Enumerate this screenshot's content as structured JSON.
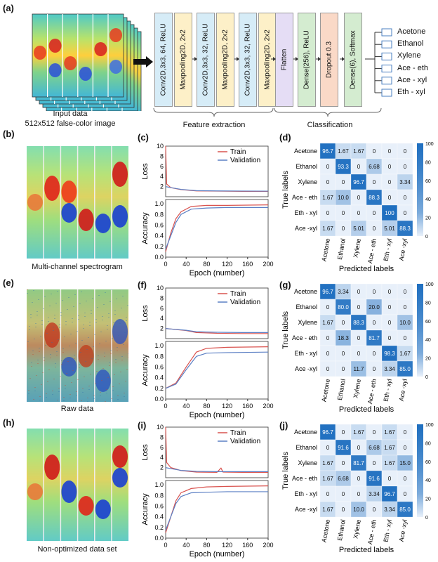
{
  "panel_labels": {
    "a": "(a)",
    "b": "(b)",
    "c": "(c)",
    "d": "(d)",
    "e": "(e)",
    "f": "(f)",
    "g": "(g)",
    "h": "(h)",
    "i": "(i)",
    "j": "(j)"
  },
  "panel_a": {
    "input_caption_1": "Input data",
    "input_caption_2": "512x512 false-color image",
    "layers": [
      {
        "label": "Conv2D,3x3, 64, ReLU",
        "color": "#d6ecf7"
      },
      {
        "label": "Maxpooling2D, 2x2",
        "color": "#fdf0c8"
      },
      {
        "label": "Conv2D,3x3, 32, ReLU",
        "color": "#d6ecf7"
      },
      {
        "label": "Maxpooling2D, 2x2",
        "color": "#fdf0c8"
      },
      {
        "label": "Conv2D,3x3, 32, ReLU",
        "color": "#d6ecf7"
      },
      {
        "label": "Maxpooling2D, 2x2",
        "color": "#fdf0c8"
      },
      {
        "label": "Flatten",
        "color": "#e5ddf5"
      },
      {
        "label": "Dense(256), ReLU",
        "color": "#d4ecd0"
      },
      {
        "label": "Dropout 0.3",
        "color": "#fad9c7"
      },
      {
        "label": "Dense(6), Softmax",
        "color": "#d4ecd0"
      }
    ],
    "feature_extraction_label": "Feature extraction",
    "classification_label": "Classification",
    "outputs": [
      "Acetone",
      "Ethanol",
      "Xylene",
      "Ace - eth",
      "Ace - xyl",
      "Eth - xyl"
    ]
  },
  "captions": {
    "b": "Multi-channel  spectrogram",
    "e": "Raw data",
    "h": "Non-optimized data set"
  },
  "chart_data": [
    {
      "type": "line",
      "panel": "c",
      "ylabel_top": "Loss",
      "ylabel_bottom": "Accuracy",
      "xlabel": "Epoch (number)",
      "x_ticks": [
        0,
        40,
        80,
        120,
        160,
        200
      ],
      "loss_ticks": [
        2,
        4,
        6,
        8,
        10
      ],
      "acc_ticks": [
        0.0,
        0.2,
        0.4,
        0.6,
        0.8,
        1.0
      ],
      "series": [
        {
          "name": "Train",
          "color": "#d9534f",
          "loss": [
            [
              0,
              10
            ],
            [
              2,
              2.5
            ],
            [
              10,
              1.8
            ],
            [
              30,
              1.4
            ],
            [
              60,
              1.15
            ],
            [
              100,
              1.1
            ],
            [
              150,
              1.05
            ],
            [
              200,
              1.05
            ]
          ],
          "acc": [
            [
              0,
              0.1
            ],
            [
              10,
              0.45
            ],
            [
              20,
              0.72
            ],
            [
              30,
              0.85
            ],
            [
              50,
              0.95
            ],
            [
              80,
              0.97
            ],
            [
              120,
              0.97
            ],
            [
              200,
              0.98
            ]
          ]
        },
        {
          "name": "Validation",
          "color": "#5b7fc4",
          "loss": [
            [
              0,
              2.0
            ],
            [
              10,
              1.8
            ],
            [
              30,
              1.45
            ],
            [
              60,
              1.2
            ],
            [
              100,
              1.15
            ],
            [
              150,
              1.12
            ],
            [
              200,
              1.1
            ]
          ],
          "acc": [
            [
              0,
              0.15
            ],
            [
              10,
              0.4
            ],
            [
              20,
              0.65
            ],
            [
              30,
              0.8
            ],
            [
              50,
              0.9
            ],
            [
              80,
              0.92
            ],
            [
              120,
              0.93
            ],
            [
              200,
              0.93
            ]
          ]
        }
      ]
    },
    {
      "type": "line",
      "panel": "f",
      "ylabel_top": "Loss",
      "ylabel_bottom": "Accuracy",
      "xlabel": "Epoch (number)",
      "x_ticks": [
        0,
        40,
        80,
        120,
        160,
        200
      ],
      "loss_ticks": [
        2,
        4,
        6,
        8,
        10
      ],
      "acc_ticks": [
        0.0,
        0.2,
        0.4,
        0.6,
        0.8,
        1.0
      ],
      "series": [
        {
          "name": "Train",
          "color": "#d9534f",
          "loss": [
            [
              0,
              2.0
            ],
            [
              10,
              1.9
            ],
            [
              40,
              1.6
            ],
            [
              60,
              1.2
            ],
            [
              100,
              1.05
            ],
            [
              150,
              1.0
            ],
            [
              200,
              1.0
            ]
          ],
          "acc": [
            [
              0,
              0.2
            ],
            [
              20,
              0.3
            ],
            [
              40,
              0.6
            ],
            [
              60,
              0.88
            ],
            [
              80,
              0.95
            ],
            [
              120,
              0.97
            ],
            [
              200,
              0.98
            ]
          ]
        },
        {
          "name": "Validation",
          "color": "#5b7fc4",
          "loss": [
            [
              0,
              2.0
            ],
            [
              10,
              1.9
            ],
            [
              40,
              1.65
            ],
            [
              60,
              1.35
            ],
            [
              100,
              1.25
            ],
            [
              150,
              1.2
            ],
            [
              200,
              1.2
            ]
          ],
          "acc": [
            [
              0,
              0.2
            ],
            [
              20,
              0.28
            ],
            [
              40,
              0.55
            ],
            [
              60,
              0.8
            ],
            [
              80,
              0.86
            ],
            [
              120,
              0.87
            ],
            [
              200,
              0.88
            ]
          ]
        }
      ]
    },
    {
      "type": "line",
      "panel": "i",
      "ylabel_top": "Loss",
      "ylabel_bottom": "Accuracy",
      "xlabel": "Epoch (number)",
      "x_ticks": [
        0,
        40,
        80,
        120,
        160,
        200
      ],
      "loss_ticks": [
        2,
        4,
        6,
        8,
        10
      ],
      "acc_ticks": [
        0.0,
        0.2,
        0.4,
        0.6,
        0.8,
        1.0
      ],
      "series": [
        {
          "name": "Train",
          "color": "#d9534f",
          "loss": [
            [
              0,
              10
            ],
            [
              2,
              3
            ],
            [
              10,
              2.0
            ],
            [
              30,
              1.4
            ],
            [
              60,
              1.1
            ],
            [
              100,
              1.05
            ],
            [
              108,
              1.9
            ],
            [
              112,
              1.1
            ],
            [
              150,
              1.05
            ],
            [
              200,
              1.05
            ]
          ],
          "acc": [
            [
              0,
              0.1
            ],
            [
              10,
              0.4
            ],
            [
              20,
              0.7
            ],
            [
              30,
              0.85
            ],
            [
              50,
              0.93
            ],
            [
              80,
              0.96
            ],
            [
              120,
              0.97
            ],
            [
              200,
              0.98
            ]
          ]
        },
        {
          "name": "Validation",
          "color": "#5b7fc4",
          "loss": [
            [
              0,
              2.0
            ],
            [
              10,
              1.8
            ],
            [
              30,
              1.45
            ],
            [
              60,
              1.25
            ],
            [
              100,
              1.2
            ],
            [
              150,
              1.2
            ],
            [
              200,
              1.2
            ]
          ],
          "acc": [
            [
              0,
              0.15
            ],
            [
              10,
              0.4
            ],
            [
              20,
              0.65
            ],
            [
              30,
              0.78
            ],
            [
              50,
              0.85
            ],
            [
              80,
              0.86
            ],
            [
              120,
              0.87
            ],
            [
              200,
              0.87
            ]
          ]
        }
      ]
    },
    {
      "type": "heatmap",
      "panel": "d",
      "labels_y": [
        "Acetone",
        "Ethanol",
        "Xylene",
        "Ace - eth",
        "Eth - xyl",
        "Ace -xyl"
      ],
      "labels_x": [
        "Acetone",
        "Ethanol",
        "Xylene",
        "Ace - eth",
        "Eth - xyl",
        "Ace -xyl"
      ],
      "xlabel": "Predicted labels",
      "ylabel": "True labels",
      "colorbar_ticks": [
        0,
        20,
        40,
        60,
        80,
        100
      ],
      "values": [
        [
          "96.7",
          "1.67",
          "1.67",
          "0",
          "0",
          "0"
        ],
        [
          "0",
          "93.3",
          "0",
          "6.68",
          "0",
          "0"
        ],
        [
          "0",
          "0",
          "96.7",
          "0",
          "0",
          "3.34"
        ],
        [
          "1.67",
          "10.0",
          "0",
          "88.3",
          "0",
          "0"
        ],
        [
          "0",
          "0",
          "0",
          "0",
          "100",
          "0"
        ],
        [
          "1.67",
          "0",
          "5.01",
          "0",
          "5.01",
          "88.3"
        ]
      ]
    },
    {
      "type": "heatmap",
      "panel": "g",
      "labels_y": [
        "Acetone",
        "Ethanol",
        "Xylene",
        "Ace - eth",
        "Eth - xyl",
        "Ace -xyl"
      ],
      "labels_x": [
        "Acetone",
        "Ethanol",
        "Xylene",
        "Ace - eth",
        "Eth - xyl",
        "Ace -xyl"
      ],
      "xlabel": "Predicted labels",
      "ylabel": "True labels",
      "colorbar_ticks": [
        0,
        20,
        40,
        60,
        80,
        100
      ],
      "values": [
        [
          "96.7",
          "3.34",
          "0",
          "0",
          "0",
          "0"
        ],
        [
          "0",
          "80.0",
          "0",
          "20.0",
          "0",
          "0"
        ],
        [
          "1.67",
          "0",
          "88.3",
          "0",
          "0",
          "10.0"
        ],
        [
          "0",
          "18.3",
          "0",
          "81.7",
          "0",
          "0"
        ],
        [
          "0",
          "0",
          "0",
          "0",
          "98.3",
          "1.67"
        ],
        [
          "0",
          "0",
          "11.7",
          "0",
          "3.34",
          "85.0"
        ]
      ]
    },
    {
      "type": "heatmap",
      "panel": "j",
      "labels_y": [
        "Acetone",
        "Ethanol",
        "Xylene",
        "Ace - eth",
        "Eth - xyl",
        "Ace -xyl"
      ],
      "labels_x": [
        "Acetone",
        "Ethanol",
        "Xylene",
        "Ace - eth",
        "Eth - xyl",
        "Ace -xyl"
      ],
      "xlabel": "Predicted labels",
      "ylabel": "True labels",
      "colorbar_ticks": [
        0,
        20,
        40,
        60,
        80,
        100
      ],
      "values": [
        [
          "96.7",
          "0",
          "1.67",
          "0",
          "1.67",
          "0"
        ],
        [
          "0",
          "91.6",
          "0",
          "6.68",
          "1.67",
          "0"
        ],
        [
          "1.67",
          "0",
          "81.7",
          "0",
          "1.67",
          "15.0"
        ],
        [
          "1.67",
          "6.68",
          "0",
          "91.6",
          "0",
          "0"
        ],
        [
          "0",
          "0",
          "0",
          "3.34",
          "96.7",
          "0"
        ],
        [
          "1.67",
          "0",
          "10.0",
          "0",
          "3.34",
          "85.0"
        ]
      ]
    }
  ]
}
